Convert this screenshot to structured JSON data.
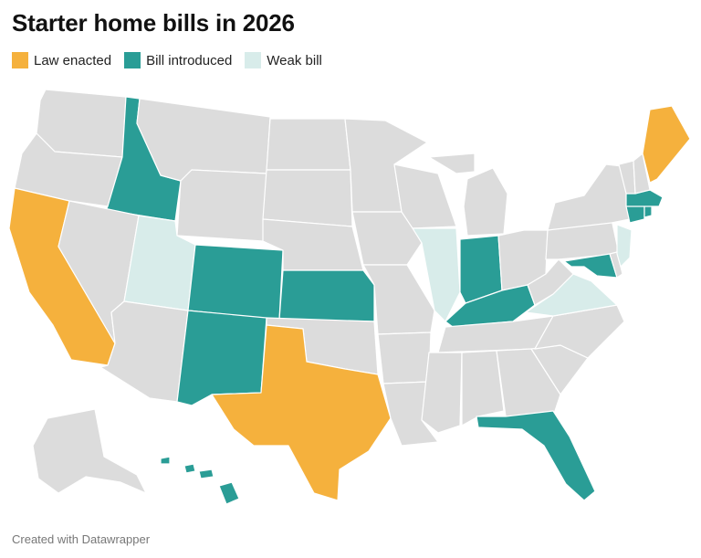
{
  "title": "Starter home bills in 2026",
  "legend": [
    {
      "label": "Law enacted",
      "color": "#f5b13d"
    },
    {
      "label": "Bill introduced",
      "color": "#2a9d96"
    },
    {
      "label": "Weak bill",
      "color": "#d8ecea"
    }
  ],
  "default_state_color": "#dcdcdc",
  "footer": "Created with Datawrapper",
  "states": {
    "law_enacted": [
      "California",
      "Texas",
      "Maine"
    ],
    "bill_introduced": [
      "Idaho",
      "Colorado",
      "New Mexico",
      "Kansas",
      "Indiana",
      "Kentucky",
      "Florida",
      "Hawaii",
      "Maryland",
      "Connecticut",
      "Massachusetts",
      "Rhode Island"
    ],
    "weak_bill": [
      "Utah",
      "Illinois",
      "Virginia",
      "New Jersey"
    ]
  }
}
